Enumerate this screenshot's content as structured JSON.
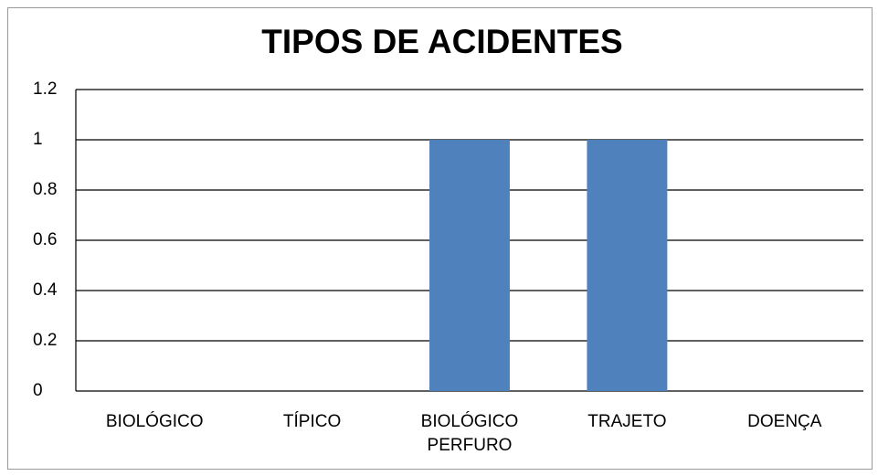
{
  "chart_data": {
    "type": "bar",
    "title": "TIPOS DE ACIDENTES",
    "categories": [
      "BIOLÓGICO",
      "TÍPICO",
      "BIOLÓGICO PERFURO",
      "TRAJETO",
      "DOENÇA"
    ],
    "values": [
      0,
      0,
      1,
      1,
      0
    ],
    "color": "#4f81bd",
    "ylim": [
      0,
      1.2
    ],
    "yticks": [
      0,
      0.2,
      0.4,
      0.6,
      0.8,
      1,
      1.2
    ],
    "grid": true
  }
}
